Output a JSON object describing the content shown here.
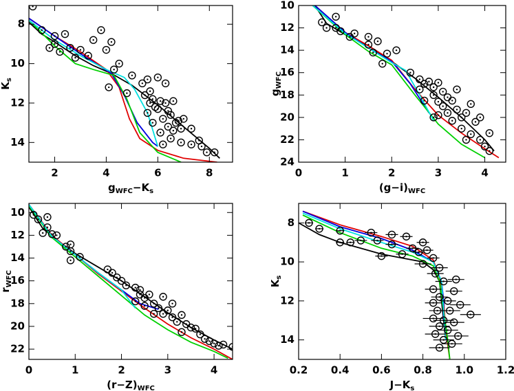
{
  "chart_data": [
    {
      "type": "scatter",
      "xlim": [
        1.0,
        8.9
      ],
      "ylim": [
        15.0,
        7.05
      ],
      "xticks": [
        2,
        4,
        6,
        8
      ],
      "yticks": [
        8,
        10,
        12,
        14
      ],
      "xlabel": [
        {
          "text": "g"
        },
        {
          "text": "WFC",
          "sub": true
        },
        {
          "text": "−K"
        },
        {
          "text": "s",
          "sub": true
        }
      ],
      "ylabel": [
        {
          "text": "K"
        },
        {
          "text": "s",
          "sub": true
        }
      ],
      "series": [
        {
          "style": "line",
          "color": "#000000",
          "x": [
            1.0,
            1.5,
            2.0,
            2.8,
            3.5,
            4.2,
            5.0,
            6.0,
            7.0,
            8.0,
            8.4
          ],
          "y": [
            7.9,
            8.5,
            8.9,
            9.6,
            10.1,
            10.5,
            11.1,
            12.1,
            13.2,
            14.3,
            14.8
          ]
        },
        {
          "style": "line",
          "color": "#e00000",
          "x": [
            1.0,
            2.0,
            3.0,
            4.0,
            4.5,
            4.9,
            5.3,
            6.0,
            7.0,
            8.3
          ],
          "y": [
            7.7,
            8.6,
            9.4,
            10.3,
            11.2,
            12.8,
            13.8,
            14.4,
            14.8,
            15.0
          ]
        },
        {
          "style": "line",
          "color": "#0000e0",
          "x": [
            1.0,
            2.0,
            3.0,
            4.2,
            4.7,
            5.2,
            5.8,
            6.0
          ],
          "y": [
            7.7,
            8.6,
            9.5,
            10.5,
            11.6,
            13.0,
            14.0,
            14.2
          ]
        },
        {
          "style": "line",
          "color": "#00d000",
          "x": [
            1.0,
            2.0,
            2.8,
            3.5,
            4.3,
            4.8,
            5.3,
            6.0,
            6.9
          ],
          "y": [
            7.8,
            9.1,
            10.0,
            10.3,
            10.6,
            11.8,
            13.5,
            14.5,
            15.0
          ]
        },
        {
          "style": "line",
          "color": "#00e0e0",
          "x": [
            1.0,
            2.0,
            3.0,
            4.0,
            4.7,
            5.1,
            5.6,
            6.0
          ],
          "y": [
            7.8,
            8.8,
            9.6,
            10.3,
            10.7,
            11.3,
            12.5,
            14.2
          ]
        },
        {
          "style": "marker",
          "color": "#000000",
          "x": [
            1.15,
            1.5,
            2.0,
            2.4,
            2.0,
            1.8,
            2.2,
            2.6,
            3.0,
            2.8,
            3.3,
            3.5,
            3.8,
            4.2,
            4.0,
            4.3,
            4.5,
            4.1,
            4.8,
            5.0,
            5.4,
            5.5,
            5.7,
            5.8,
            5.9,
            6.0,
            6.1,
            6.3,
            6.2,
            5.6,
            5.8,
            6.4,
            6.5,
            6.6,
            6.9,
            6.8,
            6.1,
            5.7,
            6.3,
            6.0,
            5.6,
            6.6,
            6.4,
            7.0,
            7.3,
            6.7,
            6.9,
            7.3,
            7.6,
            7.9,
            8.2,
            7.7,
            6.5,
            6.2
          ],
          "y": [
            7.1,
            8.3,
            8.6,
            8.5,
            9.0,
            9.2,
            9.4,
            9.2,
            9.3,
            9.7,
            9.6,
            8.8,
            8.3,
            8.9,
            9.3,
            10.3,
            10.0,
            11.2,
            11.5,
            10.6,
            11.0,
            11.6,
            11.4,
            11.8,
            12.2,
            12.3,
            11.9,
            12.0,
            12.8,
            12.5,
            13.0,
            13.2,
            12.6,
            13.4,
            13.3,
            12.9,
            13.5,
            12.0,
            11.0,
            10.7,
            10.8,
            11.9,
            12.4,
            12.8,
            13.3,
            13.0,
            14.0,
            14.1,
            13.9,
            14.5,
            14.5,
            14.2,
            13.8,
            14.1
          ]
        }
      ]
    },
    {
      "type": "scatter",
      "xlim": [
        0,
        4.45
      ],
      "ylim": [
        24,
        10
      ],
      "xticks": [
        0,
        1,
        2,
        3,
        4
      ],
      "yticks": [
        10,
        12,
        14,
        16,
        18,
        20,
        22,
        24
      ],
      "xlabel": [
        {
          "text": "(g−i)"
        },
        {
          "text": "WFC",
          "sub": true
        }
      ],
      "ylabel": [
        {
          "text": "g"
        },
        {
          "text": "WFC",
          "sub": true
        }
      ],
      "series": [
        {
          "style": "line",
          "color": "#000000",
          "x": [
            0.35,
            0.6,
            1.0,
            1.5,
            2.0,
            2.5,
            3.0,
            3.5,
            4.0,
            4.2
          ],
          "y": [
            10.0,
            11.6,
            12.6,
            13.6,
            15.0,
            16.5,
            18.2,
            20.0,
            22.0,
            23.0
          ]
        },
        {
          "style": "line",
          "color": "#e00000",
          "x": [
            0.35,
            1.0,
            1.5,
            2.0,
            2.5,
            3.0,
            3.5,
            4.0,
            4.3
          ],
          "y": [
            10.0,
            12.4,
            13.6,
            14.9,
            17.5,
            19.8,
            21.4,
            22.8,
            23.6
          ]
        },
        {
          "style": "line",
          "color": "#0000e0",
          "x": [
            0.35,
            1.0,
            1.5,
            2.0,
            2.4,
            2.8
          ],
          "y": [
            10.0,
            12.4,
            13.8,
            15.0,
            17.0,
            19.6
          ]
        },
        {
          "style": "line",
          "color": "#00d000",
          "x": [
            0.3,
            1.0,
            1.5,
            2.0,
            2.5,
            3.0,
            3.5,
            4.0
          ],
          "y": [
            10.0,
            12.6,
            14.1,
            15.3,
            18.0,
            20.6,
            22.4,
            23.6
          ]
        },
        {
          "style": "line",
          "color": "#00e0e0",
          "x": [
            0.3,
            1.0,
            1.5,
            2.0,
            2.3,
            2.6,
            2.9
          ],
          "y": [
            10.0,
            12.5,
            13.8,
            15.1,
            15.8,
            18.0,
            20.3
          ]
        },
        {
          "style": "marker",
          "color": "#000000",
          "x": [
            0.8,
            0.5,
            0.6,
            0.8,
            0.9,
            1.2,
            1.1,
            1.5,
            1.5,
            1.7,
            1.6,
            2.1,
            1.9,
            1.8,
            2.4,
            2.6,
            2.7,
            2.8,
            2.6,
            2.9,
            3.0,
            2.9,
            3.1,
            3.0,
            3.2,
            3.1,
            3.3,
            3.2,
            3.4,
            3.3,
            3.5,
            3.6,
            3.4,
            3.7,
            3.8,
            3.9,
            3.5,
            3.7,
            3.9,
            4.0,
            4.1,
            4.1,
            3.6,
            2.9,
            3.0,
            2.7
          ],
          "y": [
            11.0,
            11.5,
            12.0,
            12.0,
            12.3,
            12.5,
            12.8,
            12.8,
            13.5,
            13.2,
            14.2,
            14.0,
            14.3,
            15.2,
            16.0,
            16.6,
            17.0,
            16.8,
            17.5,
            17.3,
            16.9,
            18.0,
            17.7,
            18.6,
            18.2,
            19.0,
            18.5,
            19.6,
            19.3,
            20.3,
            20.0,
            19.6,
            17.5,
            18.8,
            20.4,
            20.0,
            21.0,
            21.5,
            22.0,
            22.6,
            21.4,
            23.0,
            22.0,
            20.0,
            19.8,
            18.5
          ]
        }
      ]
    },
    {
      "type": "scatter",
      "xlim": [
        0,
        4.4
      ],
      "ylim": [
        22.9,
        9.2
      ],
      "xticks": [
        0,
        1,
        2,
        3,
        4
      ],
      "yticks": [
        10,
        12,
        14,
        16,
        18,
        20,
        22
      ],
      "xlabel": [
        {
          "text": "(r−Z)"
        },
        {
          "text": "WFC",
          "sub": true
        }
      ],
      "ylabel": [
        {
          "text": "r"
        },
        {
          "text": "WFC",
          "sub": true
        }
      ],
      "series": [
        {
          "style": "line",
          "color": "#000000",
          "x": [
            0.0,
            0.3,
            0.6,
            1.0,
            1.5,
            2.0,
            2.5,
            3.0,
            3.5,
            4.0,
            4.4
          ],
          "y": [
            9.5,
            11.4,
            12.4,
            13.6,
            14.8,
            16.0,
            17.4,
            18.8,
            20.1,
            21.2,
            22.0
          ]
        },
        {
          "style": "line",
          "color": "#e00000",
          "x": [
            0.0,
            0.5,
            1.0,
            1.5,
            2.0,
            2.5,
            3.0,
            3.5,
            4.0,
            4.4
          ],
          "y": [
            9.3,
            12.0,
            13.7,
            15.4,
            16.9,
            18.4,
            19.8,
            21.0,
            22.0,
            22.9
          ]
        },
        {
          "style": "line",
          "color": "#0000e0",
          "x": [
            0.0,
            0.5,
            1.0,
            1.5,
            2.0,
            2.4,
            2.8
          ],
          "y": [
            9.3,
            12.1,
            13.7,
            15.3,
            16.8,
            18.0,
            18.5
          ]
        },
        {
          "style": "line",
          "color": "#00d000",
          "x": [
            0.0,
            0.5,
            1.0,
            1.5,
            2.0,
            2.5,
            3.0,
            3.5,
            4.0,
            4.3
          ],
          "y": [
            9.4,
            12.2,
            13.9,
            15.6,
            17.3,
            19.0,
            20.3,
            21.4,
            22.2,
            22.8
          ]
        },
        {
          "style": "line",
          "color": "#00e0e0",
          "x": [
            0.0,
            0.5,
            1.0,
            1.5,
            2.0,
            2.3
          ],
          "y": [
            9.3,
            12.1,
            13.7,
            15.3,
            16.8,
            18.4
          ]
        },
        {
          "style": "marker",
          "color": "#000000",
          "x": [
            0.1,
            0.2,
            0.4,
            0.4,
            0.3,
            0.5,
            0.6,
            0.9,
            0.8,
            0.9,
            0.9,
            1.1,
            1.7,
            1.8,
            1.9,
            2.0,
            2.1,
            2.3,
            2.4,
            2.4,
            2.5,
            2.6,
            2.3,
            2.5,
            2.7,
            2.8,
            2.9,
            3.0,
            2.7,
            3.1,
            3.3,
            3.2,
            3.4,
            3.5,
            3.3,
            3.6,
            3.7,
            3.8,
            3.9,
            4.0,
            4.1,
            4.2,
            4.4,
            2.9,
            3.1
          ],
          "y": [
            10.2,
            10.6,
            10.4,
            11.3,
            11.8,
            11.9,
            12.0,
            12.8,
            13.0,
            13.4,
            14.2,
            13.9,
            15.0,
            15.3,
            15.7,
            16.0,
            16.4,
            16.6,
            16.8,
            17.2,
            17.5,
            17.2,
            17.8,
            18.2,
            18.0,
            18.4,
            18.9,
            18.6,
            18.9,
            19.2,
            19.0,
            19.6,
            19.8,
            20.1,
            20.5,
            20.2,
            20.7,
            21.1,
            21.3,
            21.5,
            21.7,
            21.6,
            21.8,
            17.4,
            18.0
          ]
        }
      ]
    },
    {
      "type": "scatter",
      "xlim": [
        0.2,
        1.2
      ],
      "ylim": [
        15.0,
        7.0
      ],
      "xticks": [
        0.2,
        0.4,
        0.6,
        0.8,
        {
          "value": 1,
          "label": "1.0"
        },
        1.2
      ],
      "yticks": [
        8,
        10,
        12,
        14
      ],
      "xlabel": [
        {
          "text": "J−K"
        },
        {
          "text": "s",
          "sub": true
        }
      ],
      "ylabel": [
        {
          "text": "K"
        },
        {
          "text": "s",
          "sub": true
        }
      ],
      "series": [
        {
          "style": "line",
          "color": "#000000",
          "x": [
            0.2,
            0.3,
            0.4,
            0.5,
            0.6,
            0.7,
            0.8,
            0.85,
            0.88,
            0.89,
            0.9,
            0.91
          ],
          "y": [
            8.0,
            8.6,
            9.0,
            9.3,
            9.6,
            9.8,
            10.0,
            10.4,
            11.0,
            12.0,
            13.0,
            14.0
          ]
        },
        {
          "style": "line",
          "color": "#e00000",
          "x": [
            0.22,
            0.4,
            0.6,
            0.75,
            0.85,
            0.88,
            0.9,
            0.91,
            0.93
          ],
          "y": [
            7.4,
            8.1,
            8.7,
            9.2,
            9.9,
            10.8,
            12.0,
            13.5,
            15.0
          ]
        },
        {
          "style": "line",
          "color": "#0000e0",
          "x": [
            0.22,
            0.4,
            0.6,
            0.75,
            0.85,
            0.89,
            0.9,
            0.9
          ],
          "y": [
            7.4,
            8.2,
            8.8,
            9.4,
            10.0,
            11.0,
            12.0,
            13.0
          ]
        },
        {
          "style": "line",
          "color": "#00d000",
          "x": [
            0.22,
            0.4,
            0.6,
            0.75,
            0.85,
            0.88,
            0.9,
            0.92,
            0.93
          ],
          "y": [
            7.6,
            8.5,
            9.3,
            9.7,
            10.2,
            11.0,
            12.5,
            14.0,
            15.0
          ]
        },
        {
          "style": "line",
          "color": "#00e0e0",
          "x": [
            0.22,
            0.4,
            0.6,
            0.75,
            0.85,
            0.89,
            0.9,
            0.91
          ],
          "y": [
            7.5,
            8.3,
            9.0,
            9.5,
            10.0,
            11.0,
            12.5,
            14.0
          ]
        },
        {
          "style": "marker",
          "color": "#000000",
          "x": [
            0.25,
            0.3,
            0.4,
            0.55,
            0.65,
            0.72,
            0.5,
            0.58,
            0.45,
            0.4,
            0.65,
            0.8,
            0.75,
            0.78,
            0.82,
            0.7,
            0.6,
            0.85,
            0.8,
            0.88,
            0.86,
            0.96,
            0.9,
            0.85,
            0.95,
            0.88,
            0.92,
            0.85,
            0.98,
            0.87,
            0.93,
            1.03,
            0.85,
            0.9,
            0.95,
            0.88,
            0.92,
            0.86,
            0.97,
            0.9,
            0.94,
            0.88
          ],
          "y": [
            8.0,
            8.3,
            8.4,
            8.5,
            8.6,
            8.7,
            8.9,
            8.9,
            9.0,
            9.0,
            9.1,
            9.0,
            9.3,
            9.5,
            9.4,
            9.6,
            9.7,
            9.8,
            10.1,
            10.3,
            10.6,
            10.9,
            11.0,
            11.4,
            11.5,
            11.8,
            12.0,
            12.1,
            12.2,
            12.5,
            12.5,
            12.7,
            12.9,
            13.0,
            13.1,
            13.3,
            13.5,
            13.7,
            13.8,
            14.0,
            14.2,
            14.4
          ],
          "xerr": [
            0.02,
            0.02,
            0.02,
            0.03,
            0.03,
            0.03,
            0.03,
            0.03,
            0.02,
            0.02,
            0.03,
            0.03,
            0.03,
            0.03,
            0.03,
            0.03,
            0.03,
            0.03,
            0.04,
            0.04,
            0.04,
            0.04,
            0.04,
            0.04,
            0.04,
            0.04,
            0.04,
            0.04,
            0.05,
            0.04,
            0.05,
            0.05,
            0.05,
            0.05,
            0.05,
            0.05,
            0.05,
            0.05,
            0.05,
            0.05,
            0.05,
            0.05
          ]
        }
      ]
    }
  ]
}
